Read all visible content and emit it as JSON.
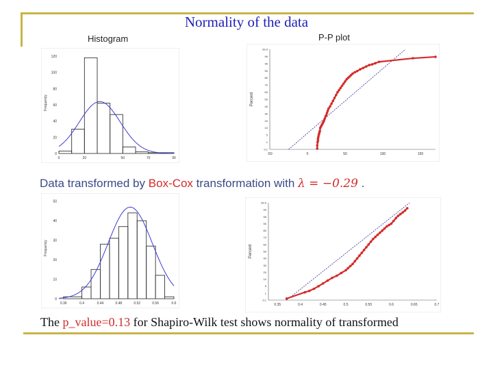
{
  "page": {
    "title": "Normality of the data",
    "histogram_label": "Histogram",
    "pp_label": "P-P plot",
    "boxcox_text": {
      "part1": "Data transformed by ",
      "part2": "Box-Cox",
      "part3": " transformation with ",
      "lambda_expr": "λ = −0.29",
      "part4": " ."
    },
    "footer": {
      "part1": "The ",
      "part2": "p_value=0.13",
      "part3": " for Shapiro-Wilk test shows normality of transformed"
    }
  },
  "colors": {
    "accent_rule": "#c8b446",
    "title_blue": "#1f1fb8",
    "curve_blue": "#3a3ad0",
    "point_red": "#d42a2a",
    "bar_stroke": "#333333"
  },
  "chart_data": [
    {
      "type": "bar",
      "ylabel": "Frequency",
      "xlim": [
        0,
        90
      ],
      "ylim": [
        0,
        125
      ],
      "x_ticks": [
        0,
        20,
        50,
        70,
        90
      ],
      "y_ticks": [
        0,
        20,
        40,
        60,
        80,
        100,
        120
      ],
      "bins": [
        [
          0,
          10
        ],
        [
          10,
          20
        ],
        [
          20,
          30
        ],
        [
          30,
          40
        ],
        [
          40,
          50
        ],
        [
          50,
          60
        ],
        [
          60,
          70
        ],
        [
          70,
          80
        ],
        [
          80,
          90
        ]
      ],
      "values": [
        3,
        30,
        118,
        62,
        48,
        8,
        2,
        1,
        1
      ],
      "normal_fit": {
        "mean": 32,
        "sd": 16,
        "peak": 64
      }
    },
    {
      "type": "scatter",
      "ylabel": "Percent",
      "xlim": [
        -50,
        170
      ],
      "x_ticks": [
        -50,
        0,
        50,
        100,
        150
      ],
      "y_ticks": [
        "0.1",
        "1",
        "5",
        "10",
        "20",
        "30",
        "40",
        "50",
        "60",
        "70",
        "80",
        "90",
        "95",
        "99",
        "99.9"
      ],
      "reference_line": [
        [
          -25,
          0.1
        ],
        [
          130,
          99.9
        ]
      ],
      "points": [
        [
          13,
          0.2
        ],
        [
          13,
          0.6
        ],
        [
          13.5,
          1
        ],
        [
          14,
          2
        ],
        [
          14,
          3
        ],
        [
          14.5,
          4
        ],
        [
          15,
          5
        ],
        [
          15.5,
          6
        ],
        [
          16,
          7
        ],
        [
          16.5,
          8
        ],
        [
          17,
          10
        ],
        [
          18,
          12
        ],
        [
          19,
          14
        ],
        [
          20,
          16
        ],
        [
          21,
          18
        ],
        [
          22,
          20
        ],
        [
          23,
          23
        ],
        [
          24,
          26
        ],
        [
          25,
          28
        ],
        [
          26,
          31
        ],
        [
          27,
          34
        ],
        [
          28,
          37
        ],
        [
          30,
          40
        ],
        [
          32,
          44
        ],
        [
          34,
          48
        ],
        [
          36,
          52
        ],
        [
          38,
          56
        ],
        [
          40,
          60
        ],
        [
          42,
          63
        ],
        [
          44,
          66
        ],
        [
          46,
          69
        ],
        [
          48,
          72
        ],
        [
          50,
          75
        ],
        [
          52,
          78
        ],
        [
          54,
          80
        ],
        [
          56,
          82
        ],
        [
          58,
          84
        ],
        [
          60,
          86
        ],
        [
          63,
          88
        ],
        [
          66,
          89.5
        ],
        [
          70,
          91
        ],
        [
          74,
          92
        ],
        [
          78,
          93
        ],
        [
          82,
          94
        ],
        [
          86,
          94.5
        ],
        [
          90,
          95.2
        ],
        [
          95,
          96
        ],
        [
          140,
          98
        ],
        [
          170,
          98.8
        ]
      ]
    },
    {
      "type": "bar",
      "ylabel": "Frequency",
      "xlim": [
        0.35,
        0.6
      ],
      "ylim": [
        0,
        52
      ],
      "x_ticks": [
        0.36,
        0.4,
        0.44,
        0.48,
        0.52,
        0.56,
        0.6
      ],
      "y_ticks": [
        0,
        10,
        20,
        30,
        40,
        50
      ],
      "bins": [
        [
          0.36,
          0.4
        ],
        [
          0.4,
          0.42
        ],
        [
          0.42,
          0.44
        ],
        [
          0.44,
          0.46
        ],
        [
          0.46,
          0.48
        ],
        [
          0.48,
          0.5
        ],
        [
          0.5,
          0.52
        ],
        [
          0.52,
          0.54
        ],
        [
          0.54,
          0.56
        ],
        [
          0.56,
          0.58
        ],
        [
          0.58,
          0.6
        ]
      ],
      "values": [
        1,
        6,
        15,
        28,
        31,
        37,
        44,
        40,
        27,
        12,
        1
      ],
      "normal_fit": {
        "mean": 0.505,
        "sd": 0.048,
        "peak": 47
      }
    },
    {
      "type": "scatter",
      "ylabel": "Percent",
      "xlim": [
        0.33,
        0.7
      ],
      "x_ticks": [
        0.35,
        0.4,
        0.45,
        0.5,
        0.55,
        0.6,
        0.65,
        0.7
      ],
      "y_ticks": [
        "0.1",
        "1",
        "5",
        "10",
        "20",
        "30",
        "40",
        "50",
        "60",
        "70",
        "80",
        "90",
        "95",
        "99",
        "99.9"
      ],
      "reference_line": [
        [
          0.37,
          0.1
        ],
        [
          0.64,
          99.9
        ]
      ],
      "points": [
        [
          0.37,
          0.3
        ],
        [
          0.41,
          1.5
        ],
        [
          0.42,
          2.3
        ],
        [
          0.43,
          3.5
        ],
        [
          0.44,
          5
        ],
        [
          0.45,
          7
        ],
        [
          0.46,
          9
        ],
        [
          0.47,
          12
        ],
        [
          0.48,
          15
        ],
        [
          0.49,
          19
        ],
        [
          0.5,
          23
        ],
        [
          0.505,
          26
        ],
        [
          0.51,
          29
        ],
        [
          0.515,
          32
        ],
        [
          0.52,
          36
        ],
        [
          0.525,
          40
        ],
        [
          0.53,
          44
        ],
        [
          0.535,
          48
        ],
        [
          0.54,
          52
        ],
        [
          0.545,
          56
        ],
        [
          0.55,
          60
        ],
        [
          0.555,
          64
        ],
        [
          0.56,
          68
        ],
        [
          0.565,
          71
        ],
        [
          0.57,
          74
        ],
        [
          0.575,
          77
        ],
        [
          0.58,
          80
        ],
        [
          0.585,
          83
        ],
        [
          0.59,
          86
        ],
        [
          0.595,
          88
        ],
        [
          0.6,
          90
        ],
        [
          0.605,
          92
        ],
        [
          0.61,
          94
        ],
        [
          0.615,
          95.5
        ],
        [
          0.62,
          96.5
        ],
        [
          0.625,
          97.5
        ],
        [
          0.63,
          98.5
        ],
        [
          0.635,
          99.2
        ]
      ]
    }
  ]
}
